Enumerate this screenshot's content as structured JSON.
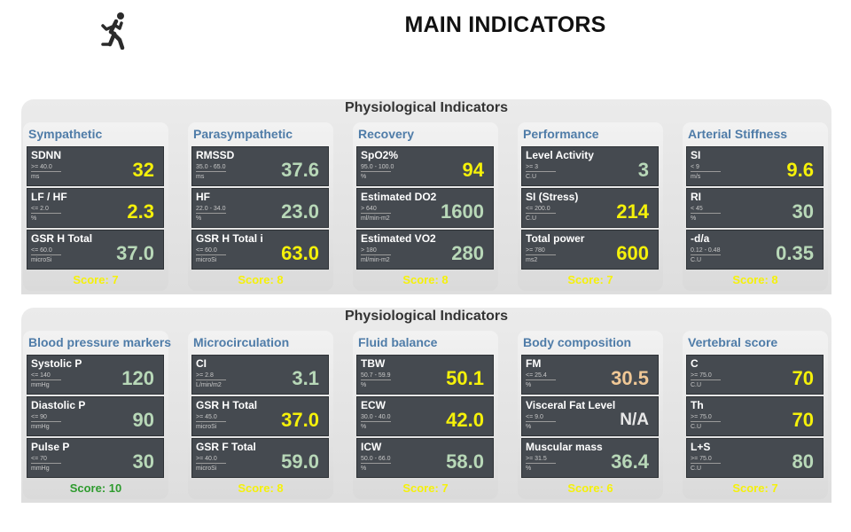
{
  "header": {
    "title": "MAIN INDICATORS",
    "logo_icon": "person-running-icon"
  },
  "colors": {
    "value_high": "#f5f10a",
    "value_normal": "#b8d8b8",
    "value_warn": "#f0c896",
    "score_good": "#2e9b2e",
    "group_title": "#4f7ca8",
    "card_bg": "#454a50"
  },
  "sections": [
    {
      "title": "Physiological Indicators",
      "groups": [
        {
          "title": "Sympathetic",
          "score": "Score: 7",
          "score_status": "yellow",
          "cards": [
            {
              "name": "SDNN",
              "range": ">= 40.0",
              "unit": "ms",
              "value": "32",
              "status": "yellow"
            },
            {
              "name": "LF / HF",
              "range": "<= 2.0",
              "unit": "%",
              "value": "2.3",
              "status": "yellow"
            },
            {
              "name": "GSR H Total",
              "range": "<= 60.0",
              "unit": "microSi",
              "value": "37.0",
              "status": "green"
            }
          ]
        },
        {
          "title": "Parasympathetic",
          "score": "Score: 8",
          "score_status": "yellow",
          "cards": [
            {
              "name": "RMSSD",
              "range": "35.0 - 65.0",
              "unit": "ms",
              "value": "37.6",
              "status": "green"
            },
            {
              "name": "HF",
              "range": "22.0 - 34.0",
              "unit": "%",
              "value": "23.0",
              "status": "green"
            },
            {
              "name": "GSR H Total i",
              "range": "<= 60.0",
              "unit": "microSi",
              "value": "63.0",
              "status": "yellow"
            }
          ]
        },
        {
          "title": "Recovery",
          "score": "Score: 8",
          "score_status": "yellow",
          "cards": [
            {
              "name": "SpO2%",
              "range": "95.0 - 100.0",
              "unit": "%",
              "value": "94",
              "status": "yellow"
            },
            {
              "name": "Estimated DO2",
              "range": "> 640",
              "unit": "ml/min-m2",
              "value": "1600",
              "status": "green"
            },
            {
              "name": "Estimated VO2",
              "range": "> 180",
              "unit": "ml/min-m2",
              "value": "280",
              "status": "green"
            }
          ]
        },
        {
          "title": "Performance",
          "score": "Score: 7",
          "score_status": "yellow",
          "cards": [
            {
              "name": "Level Activity",
              "range": ">= 3",
              "unit": "C.U",
              "value": "3",
              "status": "green"
            },
            {
              "name": "SI (Stress)",
              "range": "<= 200.0",
              "unit": "C.U",
              "value": "214",
              "status": "yellow"
            },
            {
              "name": "Total power",
              "range": ">= 780",
              "unit": "ms2",
              "value": "600",
              "status": "yellow"
            }
          ]
        },
        {
          "title": "Arterial Stiffness",
          "score": "Score: 8",
          "score_status": "yellow",
          "cards": [
            {
              "name": "SI",
              "range": "< 9",
              "unit": "m/s",
              "value": "9.6",
              "status": "yellow"
            },
            {
              "name": "RI",
              "range": "< 45",
              "unit": "%",
              "value": "30",
              "status": "green"
            },
            {
              "name": "-d/a",
              "range": "0.12 - 0.48",
              "unit": "C.U",
              "value": "0.35",
              "status": "green"
            }
          ]
        }
      ]
    },
    {
      "title": "Physiological Indicators",
      "groups": [
        {
          "title": "Blood pressure markers",
          "score": "Score: 10",
          "score_status": "green",
          "cards": [
            {
              "name": "Systolic P",
              "range": "<= 140",
              "unit": "mmHg",
              "value": "120",
              "status": "green"
            },
            {
              "name": "Diastolic P",
              "range": "<= 90",
              "unit": "mmHg",
              "value": "90",
              "status": "green"
            },
            {
              "name": "Pulse P",
              "range": "<= 70",
              "unit": "mmHg",
              "value": "30",
              "status": "green"
            }
          ]
        },
        {
          "title": "Microcirculation",
          "score": "Score: 8",
          "score_status": "yellow",
          "cards": [
            {
              "name": "CI",
              "range": ">= 2.8",
              "unit": "L/min/m2",
              "value": "3.1",
              "status": "green"
            },
            {
              "name": "GSR H Total",
              "range": ">= 45.0",
              "unit": "microSi",
              "value": "37.0",
              "status": "yellow"
            },
            {
              "name": "GSR F Total",
              "range": ">= 40.0",
              "unit": "microSi",
              "value": "59.0",
              "status": "green"
            }
          ]
        },
        {
          "title": "Fluid balance",
          "score": "Score: 7",
          "score_status": "yellow",
          "cards": [
            {
              "name": "TBW",
              "range": "50.7 - 59.9",
              "unit": "%",
              "value": "50.1",
              "status": "yellow"
            },
            {
              "name": "ECW",
              "range": "30.0 - 40.0",
              "unit": "%",
              "value": "42.0",
              "status": "yellow"
            },
            {
              "name": "ICW",
              "range": "50.0 - 66.0",
              "unit": "%",
              "value": "58.0",
              "status": "green"
            }
          ]
        },
        {
          "title": "Body composition",
          "score": "Score: 6",
          "score_status": "yellow",
          "cards": [
            {
              "name": "FM",
              "range": "<= 25.4",
              "unit": "%",
              "value": "30.5",
              "status": "orange"
            },
            {
              "name": "Visceral Fat Level",
              "range": "<= 9.0",
              "unit": "%",
              "value": "N/A",
              "status": "na"
            },
            {
              "name": "Muscular mass",
              "range": ">= 31.5",
              "unit": "%",
              "value": "36.4",
              "status": "green"
            }
          ]
        },
        {
          "title": "Vertebral score",
          "score": "Score: 7",
          "score_status": "yellow",
          "cards": [
            {
              "name": "C",
              "range": ">= 75.0",
              "unit": "C.U",
              "value": "70",
              "status": "yellow"
            },
            {
              "name": "Th",
              "range": ">= 75.0",
              "unit": "C.U",
              "value": "70",
              "status": "yellow"
            },
            {
              "name": "L+S",
              "range": ">= 75.0",
              "unit": "C.U",
              "value": "80",
              "status": "green"
            }
          ]
        }
      ]
    }
  ]
}
